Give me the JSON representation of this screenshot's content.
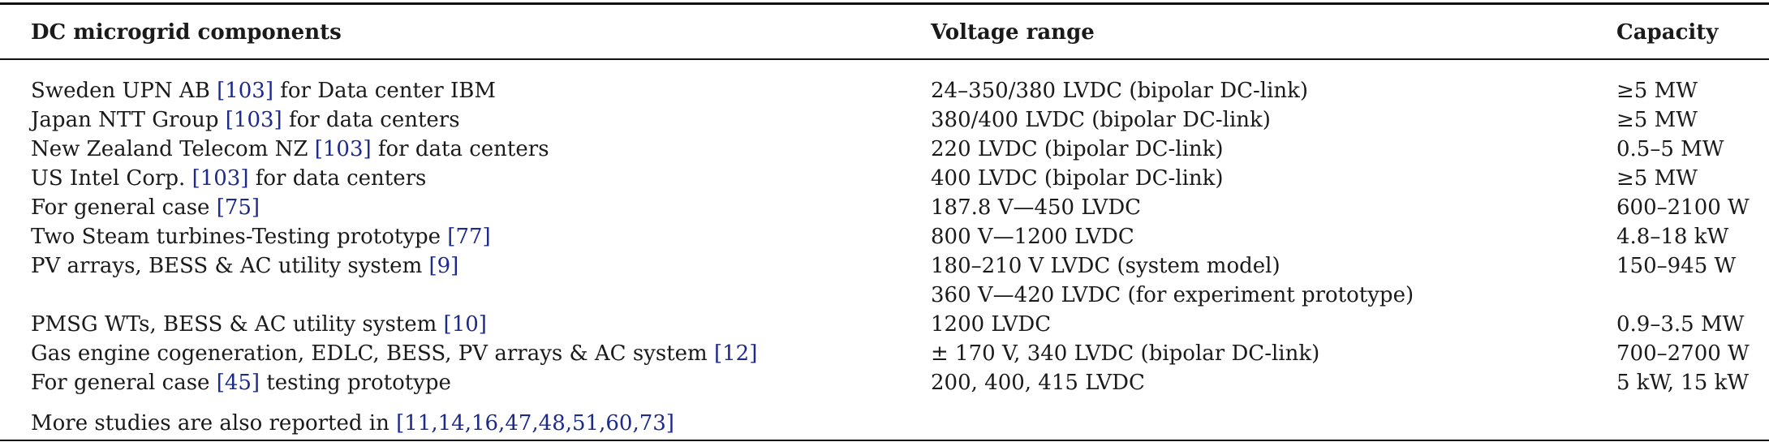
{
  "table": {
    "headers": {
      "component": "DC microgrid components",
      "voltage": "Voltage range",
      "capacity": "Capacity"
    },
    "rows": [
      {
        "pre": "Sweden UPN AB ",
        "ref": "[103]",
        "post": " for Data center IBM",
        "voltage": "24–350/380 LVDC (bipolar DC-link)",
        "capacity": "≥5 MW"
      },
      {
        "pre": "Japan NTT Group ",
        "ref": "[103]",
        "post": " for data centers",
        "voltage": "380/400 LVDC (bipolar DC-link)",
        "capacity": "≥5 MW"
      },
      {
        "pre": "New Zealand Telecom NZ ",
        "ref": "[103]",
        "post": " for data centers",
        "voltage": "220 LVDC (bipolar DC-link)",
        "capacity": "0.5–5 MW"
      },
      {
        "pre": "US Intel Corp. ",
        "ref": "[103]",
        "post": " for data centers",
        "voltage": "400 LVDC (bipolar DC-link)",
        "capacity": "≥5 MW"
      },
      {
        "pre": "For general case ",
        "ref": "[75]",
        "post": "",
        "voltage": "187.8 V—450 LVDC",
        "capacity": "600–2100 W"
      },
      {
        "pre": "Two Steam turbines-Testing prototype ",
        "ref": "[77]",
        "post": "",
        "voltage": "800 V—1200 LVDC",
        "capacity": "4.8–18 kW"
      },
      {
        "pre": "PV arrays, BESS & AC utility system ",
        "ref": "[9]",
        "post": "",
        "voltage": "180–210 V LVDC (system model)",
        "capacity": "150–945 W"
      },
      {
        "pre": "",
        "ref": "",
        "post": "",
        "voltage": "360 V—420 LVDC (for experiment prototype)",
        "capacity": ""
      },
      {
        "pre": "PMSG WTs, BESS & AC utility system ",
        "ref": "[10]",
        "post": "",
        "voltage": "1200 LVDC",
        "capacity": "0.9–3.5 MW"
      },
      {
        "pre": "Gas engine cogeneration, EDLC, BESS, PV arrays & AC system ",
        "ref": "[12]",
        "post": "",
        "voltage": "± 170 V, 340 LVDC (bipolar DC-link)",
        "capacity": "700–2700 W"
      },
      {
        "pre": "For general case ",
        "ref": "[45]",
        "post": " testing prototype",
        "voltage": "200, 400, 415 LVDC",
        "capacity": "5 kW, 15 kW"
      }
    ],
    "footnote": {
      "pre": "More studies are also reported in ",
      "ref": "[11,14,16,47,48,51,60,73]"
    }
  },
  "colors": {
    "reference_link": "#1d2a8a",
    "text": "#1a1a1a",
    "rule": "#111111"
  }
}
